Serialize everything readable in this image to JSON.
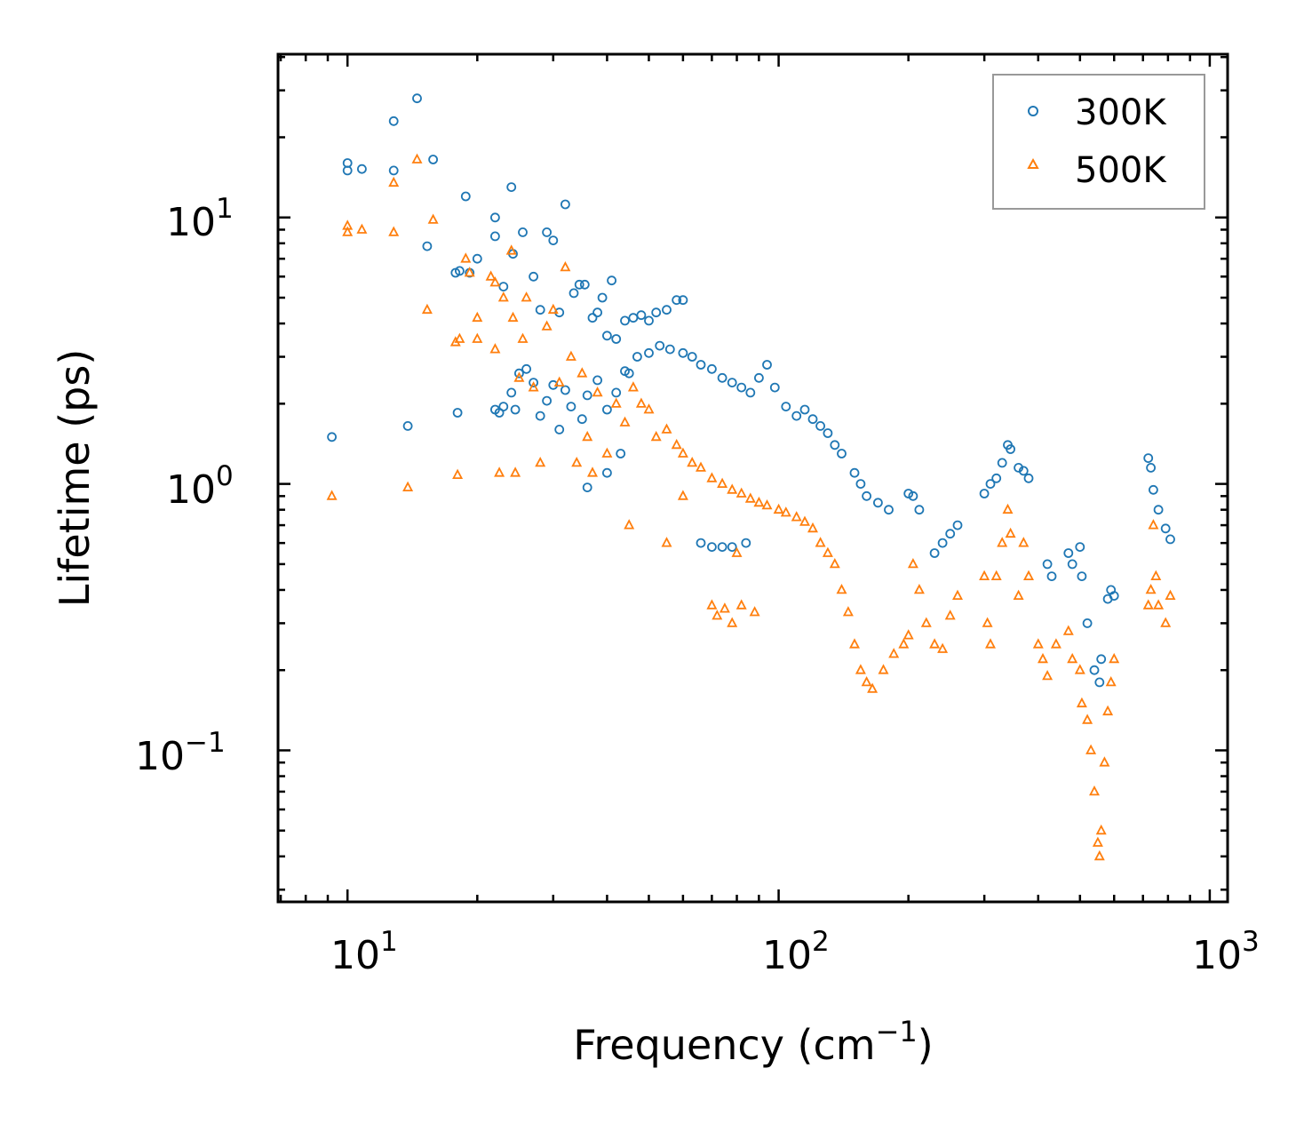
{
  "chart_data": {
    "type": "scatter",
    "title": "",
    "xlabel": "Frequency (cm",
    "xlabel_sup": "−1",
    "xlabel_end": ")",
    "ylabel": "Lifetime (ps)",
    "xscale": "log",
    "yscale": "log",
    "xlim": [
      6.9,
      1100
    ],
    "ylim": [
      0.027,
      41
    ],
    "x_ticks": [
      {
        "base": "10",
        "exp": "1",
        "value": 10
      },
      {
        "base": "10",
        "exp": "2",
        "value": 100
      },
      {
        "base": "10",
        "exp": "3",
        "value": 1000
      }
    ],
    "y_ticks": [
      {
        "base": "10",
        "exp": "−1",
        "value": 0.1
      },
      {
        "base": "10",
        "exp": "0",
        "value": 1
      },
      {
        "base": "10",
        "exp": "1",
        "value": 10
      }
    ],
    "legend_position": "top-right",
    "series": [
      {
        "name": "300K",
        "marker": "circle",
        "color": "#1f77b4",
        "points": [
          [
            9.2,
            1.5
          ],
          [
            10,
            16
          ],
          [
            10,
            15
          ],
          [
            10.8,
            15.2
          ],
          [
            12.8,
            23
          ],
          [
            12.8,
            15
          ],
          [
            14.5,
            28
          ],
          [
            15.3,
            7.8
          ],
          [
            15.8,
            16.5
          ],
          [
            18.2,
            6.3
          ],
          [
            18.8,
            12
          ],
          [
            19.2,
            6.2
          ],
          [
            20,
            7
          ],
          [
            17.8,
            6.2
          ],
          [
            18,
            1.85
          ],
          [
            22,
            10
          ],
          [
            22,
            8.5
          ],
          [
            23,
            5.5
          ],
          [
            24,
            13
          ],
          [
            24.2,
            7.3
          ],
          [
            25.5,
            8.8
          ],
          [
            27,
            6
          ],
          [
            28,
            4.5
          ],
          [
            29,
            8.8
          ],
          [
            30,
            8.2
          ],
          [
            31,
            4.4
          ],
          [
            32,
            11.2
          ],
          [
            33.5,
            5.2
          ],
          [
            34.5,
            5.6
          ],
          [
            35.5,
            5.6
          ],
          [
            37,
            4.2
          ],
          [
            38,
            4.4
          ],
          [
            39,
            5
          ],
          [
            40,
            3.6
          ],
          [
            41,
            5.8
          ],
          [
            42,
            3.5
          ],
          [
            44,
            4.1
          ],
          [
            46,
            4.2
          ],
          [
            48,
            4.3
          ],
          [
            50,
            4.1
          ],
          [
            52,
            4.4
          ],
          [
            55,
            4.5
          ],
          [
            58,
            4.9
          ],
          [
            60,
            4.9
          ],
          [
            22,
            1.9
          ],
          [
            23,
            1.95
          ],
          [
            24,
            2.2
          ],
          [
            25,
            2.6
          ],
          [
            26,
            2.7
          ],
          [
            27,
            2.4
          ],
          [
            28,
            1.8
          ],
          [
            29,
            2.05
          ],
          [
            30,
            2.35
          ],
          [
            31,
            1.6
          ],
          [
            32,
            2.25
          ],
          [
            33,
            1.95
          ],
          [
            35,
            1.75
          ],
          [
            36,
            2.15
          ],
          [
            38,
            2.45
          ],
          [
            40,
            1.9
          ],
          [
            42,
            2.2
          ],
          [
            44,
            2.65
          ],
          [
            22.5,
            1.85
          ],
          [
            24.5,
            1.9
          ],
          [
            13.8,
            1.65
          ],
          [
            36,
            0.97
          ],
          [
            40,
            1.1
          ],
          [
            43,
            1.3
          ],
          [
            45,
            2.6
          ],
          [
            47,
            3.0
          ],
          [
            50,
            3.1
          ],
          [
            53,
            3.3
          ],
          [
            56,
            3.2
          ],
          [
            60,
            3.1
          ],
          [
            63,
            3.0
          ],
          [
            66,
            2.8
          ],
          [
            70,
            2.7
          ],
          [
            74,
            2.5
          ],
          [
            78,
            2.4
          ],
          [
            82,
            2.3
          ],
          [
            86,
            2.2
          ],
          [
            90,
            2.5
          ],
          [
            94,
            2.8
          ],
          [
            98,
            2.3
          ],
          [
            104,
            1.95
          ],
          [
            110,
            1.8
          ],
          [
            115,
            1.9
          ],
          [
            120,
            1.75
          ],
          [
            125,
            1.65
          ],
          [
            130,
            1.55
          ],
          [
            135,
            1.4
          ],
          [
            140,
            1.3
          ],
          [
            150,
            1.1
          ],
          [
            155,
            1.0
          ],
          [
            160,
            0.9
          ],
          [
            170,
            0.85
          ],
          [
            180,
            0.8
          ],
          [
            200,
            0.92
          ],
          [
            205,
            0.9
          ],
          [
            212,
            0.8
          ],
          [
            230,
            0.55
          ],
          [
            240,
            0.6
          ],
          [
            250,
            0.65
          ],
          [
            260,
            0.7
          ],
          [
            300,
            0.92
          ],
          [
            310,
            1.0
          ],
          [
            320,
            1.05
          ],
          [
            330,
            1.2
          ],
          [
            340,
            1.4
          ],
          [
            345,
            1.35
          ],
          [
            360,
            1.15
          ],
          [
            370,
            1.12
          ],
          [
            380,
            1.05
          ],
          [
            420,
            0.5
          ],
          [
            430,
            0.45
          ],
          [
            470,
            0.55
          ],
          [
            480,
            0.5
          ],
          [
            500,
            0.58
          ],
          [
            505,
            0.45
          ],
          [
            520,
            0.3
          ],
          [
            540,
            0.2
          ],
          [
            555,
            0.18
          ],
          [
            560,
            0.22
          ],
          [
            580,
            0.37
          ],
          [
            590,
            0.4
          ],
          [
            600,
            0.38
          ],
          [
            720,
            1.25
          ],
          [
            730,
            1.15
          ],
          [
            740,
            0.95
          ],
          [
            760,
            0.8
          ],
          [
            790,
            0.68
          ],
          [
            810,
            0.62
          ],
          [
            66,
            0.6
          ],
          [
            70,
            0.58
          ],
          [
            74,
            0.58
          ],
          [
            78,
            0.58
          ],
          [
            84,
            0.6
          ]
        ]
      },
      {
        "name": "500K",
        "marker": "triangle",
        "color": "#ff7f0e",
        "points": [
          [
            9.2,
            0.9
          ],
          [
            10,
            9.3
          ],
          [
            10,
            8.8
          ],
          [
            10.8,
            9
          ],
          [
            12.8,
            8.8
          ],
          [
            12.8,
            13.5
          ],
          [
            13.8,
            0.97
          ],
          [
            14.5,
            16.5
          ],
          [
            15.3,
            4.5
          ],
          [
            15.8,
            9.8
          ],
          [
            17.8,
            3.4
          ],
          [
            18,
            1.08
          ],
          [
            18.2,
            3.5
          ],
          [
            18.8,
            7
          ],
          [
            19.2,
            6.2
          ],
          [
            20,
            4.2
          ],
          [
            20,
            3.5
          ],
          [
            21.5,
            6
          ],
          [
            22,
            5.7
          ],
          [
            22,
            3.2
          ],
          [
            22.5,
            1.1
          ],
          [
            23,
            5
          ],
          [
            24,
            7.5
          ],
          [
            24.2,
            4.2
          ],
          [
            24.5,
            1.1
          ],
          [
            25,
            2.5
          ],
          [
            25.5,
            3.5
          ],
          [
            26,
            5
          ],
          [
            27,
            2.3
          ],
          [
            28,
            1.2
          ],
          [
            29,
            3.9
          ],
          [
            30,
            4.5
          ],
          [
            31,
            2.4
          ],
          [
            32,
            6.5
          ],
          [
            33,
            3
          ],
          [
            34,
            1.2
          ],
          [
            35,
            2.6
          ],
          [
            36,
            1.5
          ],
          [
            37,
            1.1
          ],
          [
            38,
            2.2
          ],
          [
            40,
            1.3
          ],
          [
            42,
            2.0
          ],
          [
            44,
            1.7
          ],
          [
            45,
            0.7
          ],
          [
            46,
            2.3
          ],
          [
            48,
            2.0
          ],
          [
            50,
            1.9
          ],
          [
            52,
            1.5
          ],
          [
            55,
            1.6
          ],
          [
            58,
            1.4
          ],
          [
            60,
            1.3
          ],
          [
            63,
            1.2
          ],
          [
            66,
            1.15
          ],
          [
            70,
            1.05
          ],
          [
            74,
            1.0
          ],
          [
            78,
            0.95
          ],
          [
            82,
            0.92
          ],
          [
            86,
            0.88
          ],
          [
            90,
            0.85
          ],
          [
            94,
            0.83
          ],
          [
            100,
            0.8
          ],
          [
            104,
            0.78
          ],
          [
            110,
            0.75
          ],
          [
            115,
            0.72
          ],
          [
            120,
            0.68
          ],
          [
            125,
            0.6
          ],
          [
            130,
            0.55
          ],
          [
            135,
            0.5
          ],
          [
            140,
            0.4
          ],
          [
            145,
            0.33
          ],
          [
            150,
            0.25
          ],
          [
            155,
            0.2
          ],
          [
            160,
            0.18
          ],
          [
            165,
            0.17
          ],
          [
            175,
            0.2
          ],
          [
            185,
            0.23
          ],
          [
            195,
            0.25
          ],
          [
            200,
            0.27
          ],
          [
            205,
            0.5
          ],
          [
            212,
            0.4
          ],
          [
            220,
            0.3
          ],
          [
            230,
            0.25
          ],
          [
            240,
            0.24
          ],
          [
            250,
            0.32
          ],
          [
            260,
            0.38
          ],
          [
            300,
            0.45
          ],
          [
            305,
            0.3
          ],
          [
            310,
            0.25
          ],
          [
            320,
            0.45
          ],
          [
            330,
            0.6
          ],
          [
            340,
            0.8
          ],
          [
            345,
            0.65
          ],
          [
            360,
            0.38
          ],
          [
            370,
            0.6
          ],
          [
            380,
            0.45
          ],
          [
            400,
            0.25
          ],
          [
            410,
            0.22
          ],
          [
            420,
            0.19
          ],
          [
            440,
            0.25
          ],
          [
            470,
            0.28
          ],
          [
            480,
            0.22
          ],
          [
            500,
            0.2
          ],
          [
            505,
            0.15
          ],
          [
            520,
            0.13
          ],
          [
            530,
            0.1
          ],
          [
            540,
            0.07
          ],
          [
            550,
            0.045
          ],
          [
            555,
            0.04
          ],
          [
            560,
            0.05
          ],
          [
            570,
            0.09
          ],
          [
            580,
            0.14
          ],
          [
            590,
            0.18
          ],
          [
            600,
            0.22
          ],
          [
            720,
            0.35
          ],
          [
            730,
            0.4
          ],
          [
            740,
            0.7
          ],
          [
            750,
            0.45
          ],
          [
            760,
            0.35
          ],
          [
            790,
            0.3
          ],
          [
            810,
            0.38
          ],
          [
            70,
            0.35
          ],
          [
            72,
            0.32
          ],
          [
            75,
            0.34
          ],
          [
            78,
            0.3
          ],
          [
            82,
            0.35
          ],
          [
            88,
            0.33
          ],
          [
            60,
            0.9
          ],
          [
            55,
            0.6
          ],
          [
            80,
            0.55
          ]
        ]
      }
    ]
  }
}
